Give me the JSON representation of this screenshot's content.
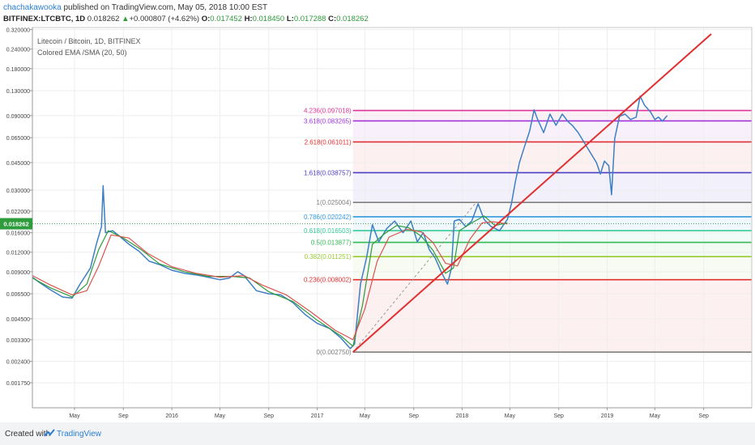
{
  "header": {
    "author": "chachakawooka",
    "published_text": "published on TradingView.com, May 05, 2018 10:00 EST"
  },
  "ohlc": {
    "symbol": "BITFINEX:LTCBTC, 1D",
    "price": "0.018262",
    "change_arrow": "▲",
    "change": "+0.000807 (+4.62%)",
    "open_label": "O:",
    "open": "0.017452",
    "high_label": "H:",
    "high": "0.018450",
    "low_label": "L:",
    "low": "0.017288",
    "close_label": "C:",
    "close": "0.018262"
  },
  "legend": {
    "title": "Litecoin / Bitcoin, 1D, BITFINEX",
    "indicator": "Colored EMA /SMA (20, 50)"
  },
  "footer": {
    "created_with": "Created with",
    "brand": "TradingView"
  },
  "colors": {
    "price_line": "#3d7fc4",
    "ema": "#2e9b3c",
    "sma": "#d9534f",
    "trendline": "#e03030",
    "fib_0": "#808080",
    "fib_0236": "#e03030",
    "fib_0382": "#99cc33",
    "fib_05": "#33bb55",
    "fib_0618": "#33cc99",
    "fib_0786": "#3399dd",
    "fib_1": "#808080",
    "fib_1618": "#4b3ec4",
    "fib_2618": "#e03030",
    "fib_3618": "#a033d9",
    "fib_4236": "#e03399"
  },
  "chart_data": {
    "type": "line",
    "title": "Litecoin / Bitcoin, 1D, BITFINEX",
    "y_scale": "log",
    "ylim": [
      0.0015,
      0.33
    ],
    "y_ticks": [
      "0.320000",
      "0.240000",
      "0.180000",
      "0.130000",
      "0.090000",
      "0.065000",
      "0.045000",
      "0.030000",
      "0.022000",
      "0.016000",
      "0.012000",
      "0.009000",
      "0.006500",
      "0.004500",
      "0.003300",
      "0.002400",
      "0.001750"
    ],
    "y_tick_values": [
      0.32,
      0.24,
      0.18,
      0.13,
      0.09,
      0.065,
      0.045,
      0.03,
      0.022,
      0.016,
      0.012,
      0.009,
      0.0065,
      0.0045,
      0.0033,
      0.0024,
      0.00175
    ],
    "x_ticks": [
      "May",
      "Sep",
      "2016",
      "May",
      "Sep",
      "2017",
      "May",
      "Sep",
      "2018",
      "May",
      "Sep",
      "2019",
      "May",
      "Sep"
    ],
    "x_tick_dates": [
      "2015-05-01",
      "2015-09-01",
      "2016-01-01",
      "2016-05-01",
      "2016-09-01",
      "2017-01-01",
      "2017-05-01",
      "2017-09-01",
      "2018-01-01",
      "2018-05-01",
      "2018-09-01",
      "2019-01-01",
      "2019-05-01",
      "2019-09-01"
    ],
    "xlim": [
      "2015-01-15",
      "2019-12-31"
    ],
    "last_price_label": "0.018262",
    "last_price": 0.018262,
    "fib_levels": [
      {
        "ratio": "0",
        "label": "0(0.002750)",
        "value": 0.00275,
        "color": "#808080"
      },
      {
        "ratio": "0.236",
        "label": "0.236(0.008002)",
        "value": 0.008002,
        "color": "#e03030"
      },
      {
        "ratio": "0.382",
        "label": "0.382(0.011251)",
        "value": 0.011251,
        "color": "#99cc33"
      },
      {
        "ratio": "0.5",
        "label": "0.5(0.013877)",
        "value": 0.013877,
        "color": "#33bb55"
      },
      {
        "ratio": "0.618",
        "label": "0.618(0.016503)",
        "value": 0.016503,
        "color": "#33cc99"
      },
      {
        "ratio": "0.786",
        "label": "0.786(0.020242)",
        "value": 0.020242,
        "color": "#3399dd"
      },
      {
        "ratio": "1",
        "label": "1(0.025004)",
        "value": 0.025004,
        "color": "#808080"
      },
      {
        "ratio": "1.618",
        "label": "1.618(0.038757)",
        "value": 0.038757,
        "color": "#4b3ec4"
      },
      {
        "ratio": "2.618",
        "label": "2.618(0.061011)",
        "value": 0.061011,
        "color": "#e03030"
      },
      {
        "ratio": "3.618",
        "label": "3.618(0.083265)",
        "value": 0.083265,
        "color": "#a033d9"
      },
      {
        "ratio": "4.236",
        "label": "4.236(0.097018)",
        "value": 0.097018,
        "color": "#e03399"
      }
    ],
    "fib_start_date": "2017-04-01",
    "fib_end_date": "2019-12-31",
    "trendline": [
      {
        "date": "2017-04-01",
        "value": 0.00275
      },
      {
        "date": "2019-09-20",
        "value": 0.3
      }
    ],
    "fib_anchor_line": [
      {
        "date": "2017-04-01",
        "value": 0.00275
      },
      {
        "date": "2018-02-05",
        "value": 0.025
      }
    ],
    "series": [
      {
        "name": "LTCBTC",
        "color": "#3d7fc4",
        "points": [
          [
            "2015-01-15",
            0.0083
          ],
          [
            "2015-02-01",
            0.0077
          ],
          [
            "2015-03-01",
            0.0069
          ],
          [
            "2015-04-01",
            0.0062
          ],
          [
            "2015-04-25",
            0.0061
          ],
          [
            "2015-05-15",
            0.0075
          ],
          [
            "2015-06-10",
            0.0095
          ],
          [
            "2015-06-25",
            0.0135
          ],
          [
            "2015-07-08",
            0.0175
          ],
          [
            "2015-07-12",
            0.032
          ],
          [
            "2015-07-18",
            0.016
          ],
          [
            "2015-08-05",
            0.0165
          ],
          [
            "2015-08-25",
            0.015
          ],
          [
            "2015-09-15",
            0.0135
          ],
          [
            "2015-10-10",
            0.0122
          ],
          [
            "2015-11-05",
            0.0105
          ],
          [
            "2015-12-01",
            0.01
          ],
          [
            "2016-01-01",
            0.0092
          ],
          [
            "2016-02-01",
            0.0088
          ],
          [
            "2016-03-01",
            0.0086
          ],
          [
            "2016-04-01",
            0.0083
          ],
          [
            "2016-05-01",
            0.008
          ],
          [
            "2016-05-25",
            0.0082
          ],
          [
            "2016-06-15",
            0.009
          ],
          [
            "2016-07-01",
            0.0085
          ],
          [
            "2016-08-01",
            0.0068
          ],
          [
            "2016-09-01",
            0.0065
          ],
          [
            "2016-10-01",
            0.0064
          ],
          [
            "2016-11-01",
            0.0057
          ],
          [
            "2016-12-01",
            0.0048
          ],
          [
            "2017-01-01",
            0.0042
          ],
          [
            "2017-02-01",
            0.0039
          ],
          [
            "2017-03-01",
            0.0034
          ],
          [
            "2017-03-25",
            0.0029
          ],
          [
            "2017-04-05",
            0.0031
          ],
          [
            "2017-04-20",
            0.0075
          ],
          [
            "2017-05-05",
            0.011
          ],
          [
            "2017-05-20",
            0.018
          ],
          [
            "2017-06-05",
            0.014
          ],
          [
            "2017-06-25",
            0.017
          ],
          [
            "2017-07-15",
            0.019
          ],
          [
            "2017-08-05",
            0.016
          ],
          [
            "2017-08-25",
            0.019
          ],
          [
            "2017-09-10",
            0.014
          ],
          [
            "2017-09-25",
            0.016
          ],
          [
            "2017-10-10",
            0.0125
          ],
          [
            "2017-10-25",
            0.011
          ],
          [
            "2017-11-10",
            0.0089
          ],
          [
            "2017-11-25",
            0.0075
          ],
          [
            "2017-12-05",
            0.0095
          ],
          [
            "2017-12-12",
            0.019
          ],
          [
            "2017-12-25",
            0.0195
          ],
          [
            "2018-01-10",
            0.0175
          ],
          [
            "2018-01-25",
            0.019
          ],
          [
            "2018-02-10",
            0.0245
          ],
          [
            "2018-02-25",
            0.0195
          ],
          [
            "2018-03-15",
            0.0175
          ],
          [
            "2018-04-05",
            0.0165
          ],
          [
            "2018-04-25",
            0.0195
          ],
          [
            "2018-05-05",
            0.0245
          ],
          [
            "2018-05-15",
            0.034
          ],
          [
            "2018-05-25",
            0.045
          ],
          [
            "2018-06-05",
            0.055
          ],
          [
            "2018-06-20",
            0.072
          ],
          [
            "2018-07-01",
            0.098
          ],
          [
            "2018-07-10",
            0.085
          ],
          [
            "2018-07-25",
            0.07
          ],
          [
            "2018-08-10",
            0.092
          ],
          [
            "2018-08-25",
            0.078
          ],
          [
            "2018-09-10",
            0.092
          ],
          [
            "2018-09-25",
            0.082
          ],
          [
            "2018-10-05",
            0.078
          ],
          [
            "2018-10-20",
            0.07
          ],
          [
            "2018-11-05",
            0.06
          ],
          [
            "2018-11-20",
            0.052
          ],
          [
            "2018-12-05",
            0.045
          ],
          [
            "2018-12-15",
            0.038
          ],
          [
            "2018-12-25",
            0.046
          ],
          [
            "2019-01-05",
            0.043
          ],
          [
            "2019-01-12",
            0.028
          ],
          [
            "2019-01-20",
            0.064
          ],
          [
            "2019-02-01",
            0.089
          ],
          [
            "2019-02-15",
            0.092
          ],
          [
            "2019-03-01",
            0.085
          ],
          [
            "2019-03-15",
            0.088
          ],
          [
            "2019-03-25",
            0.12
          ],
          [
            "2019-04-05",
            0.105
          ],
          [
            "2019-04-20",
            0.095
          ],
          [
            "2019-05-01",
            0.085
          ],
          [
            "2019-05-10",
            0.088
          ],
          [
            "2019-05-20",
            0.083
          ],
          [
            "2019-06-01",
            0.09
          ]
        ]
      },
      {
        "name": "EMA (20)",
        "color": "#2e9b3c",
        "points": [
          [
            "2015-01-15",
            0.0082
          ],
          [
            "2015-03-01",
            0.0071
          ],
          [
            "2015-04-25",
            0.0062
          ],
          [
            "2015-06-01",
            0.0075
          ],
          [
            "2015-07-01",
            0.0125
          ],
          [
            "2015-07-25",
            0.0165
          ],
          [
            "2015-09-01",
            0.0148
          ],
          [
            "2015-10-15",
            0.0125
          ],
          [
            "2015-12-01",
            0.0101
          ],
          [
            "2016-02-01",
            0.009
          ],
          [
            "2016-04-01",
            0.0084
          ],
          [
            "2016-06-01",
            0.0084
          ],
          [
            "2016-07-15",
            0.0082
          ],
          [
            "2016-09-01",
            0.0067
          ],
          [
            "2016-11-01",
            0.0058
          ],
          [
            "2017-01-01",
            0.0044
          ],
          [
            "2017-03-01",
            0.0035
          ],
          [
            "2017-04-01",
            0.003
          ],
          [
            "2017-04-25",
            0.0055
          ],
          [
            "2017-05-20",
            0.0135
          ],
          [
            "2017-06-20",
            0.0158
          ],
          [
            "2017-07-20",
            0.0178
          ],
          [
            "2017-08-20",
            0.0172
          ],
          [
            "2017-09-20",
            0.0152
          ],
          [
            "2017-10-20",
            0.0123
          ],
          [
            "2017-11-20",
            0.0088
          ],
          [
            "2017-12-10",
            0.0095
          ],
          [
            "2017-12-25",
            0.0165
          ],
          [
            "2018-01-25",
            0.0185
          ],
          [
            "2018-02-25",
            0.0205
          ],
          [
            "2018-03-25",
            0.0178
          ],
          [
            "2018-04-25",
            0.0185
          ]
        ]
      },
      {
        "name": "SMA (50)",
        "color": "#d9534f",
        "points": [
          [
            "2015-01-15",
            0.0085
          ],
          [
            "2015-03-01",
            0.0074
          ],
          [
            "2015-04-25",
            0.0064
          ],
          [
            "2015-06-01",
            0.0068
          ],
          [
            "2015-07-01",
            0.0098
          ],
          [
            "2015-08-01",
            0.0155
          ],
          [
            "2015-09-15",
            0.0148
          ],
          [
            "2015-11-01",
            0.0118
          ],
          [
            "2016-01-01",
            0.0097
          ],
          [
            "2016-03-01",
            0.0088
          ],
          [
            "2016-05-01",
            0.0083
          ],
          [
            "2016-07-01",
            0.0085
          ],
          [
            "2016-08-15",
            0.0074
          ],
          [
            "2016-10-15",
            0.0064
          ],
          [
            "2016-12-15",
            0.005
          ],
          [
            "2017-02-15",
            0.0038
          ],
          [
            "2017-04-01",
            0.0033
          ],
          [
            "2017-05-01",
            0.0052
          ],
          [
            "2017-06-01",
            0.0105
          ],
          [
            "2017-07-01",
            0.015
          ],
          [
            "2017-08-15",
            0.0168
          ],
          [
            "2017-09-20",
            0.0162
          ],
          [
            "2017-10-20",
            0.0138
          ],
          [
            "2017-11-20",
            0.0102
          ],
          [
            "2017-12-20",
            0.0098
          ],
          [
            "2018-01-20",
            0.0145
          ],
          [
            "2018-02-20",
            0.0185
          ],
          [
            "2018-03-20",
            0.0188
          ],
          [
            "2018-04-25",
            0.0182
          ]
        ]
      }
    ]
  }
}
